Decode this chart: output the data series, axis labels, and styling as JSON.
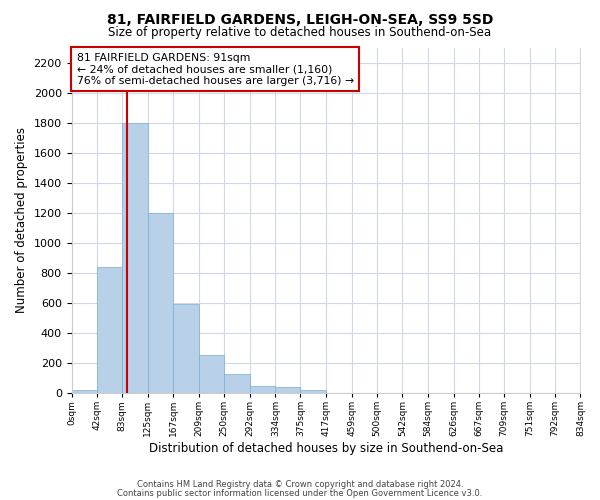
{
  "title": "81, FAIRFIELD GARDENS, LEIGH-ON-SEA, SS9 5SD",
  "subtitle": "Size of property relative to detached houses in Southend-on-Sea",
  "xlabel": "Distribution of detached houses by size in Southend-on-Sea",
  "ylabel": "Number of detached properties",
  "bar_values": [
    20,
    840,
    1800,
    1200,
    590,
    255,
    125,
    45,
    40,
    20,
    0,
    0,
    0,
    0,
    0,
    0,
    0,
    0,
    0,
    0
  ],
  "bin_edges": [
    0,
    42,
    83,
    125,
    167,
    209,
    250,
    292,
    334,
    375,
    417,
    459,
    500,
    542,
    584,
    626,
    667,
    709,
    751,
    792,
    834
  ],
  "tick_labels": [
    "0sqm",
    "42sqm",
    "83sqm",
    "125sqm",
    "167sqm",
    "209sqm",
    "250sqm",
    "292sqm",
    "334sqm",
    "375sqm",
    "417sqm",
    "459sqm",
    "500sqm",
    "542sqm",
    "584sqm",
    "626sqm",
    "667sqm",
    "709sqm",
    "751sqm",
    "792sqm",
    "834sqm"
  ],
  "bar_color": "#b8d0e8",
  "bar_edge_color": "#7aafd4",
  "property_line_x": 91,
  "property_line_color": "#cc0000",
  "ylim": [
    0,
    2300
  ],
  "yticks": [
    0,
    200,
    400,
    600,
    800,
    1000,
    1200,
    1400,
    1600,
    1800,
    2000,
    2200
  ],
  "annotation_line1": "81 FAIRFIELD GARDENS: 91sqm",
  "annotation_line2": "← 24% of detached houses are smaller (1,160)",
  "annotation_line3": "76% of semi-detached houses are larger (3,716) →",
  "annotation_box_facecolor": "#ffffff",
  "annotation_box_edgecolor": "#cc0000",
  "footer1": "Contains HM Land Registry data © Crown copyright and database right 2024.",
  "footer2": "Contains public sector information licensed under the Open Government Licence v3.0.",
  "fig_facecolor": "#ffffff",
  "plot_facecolor": "#ffffff",
  "grid_color": "#d0d8e8",
  "spine_color": "#cccccc"
}
